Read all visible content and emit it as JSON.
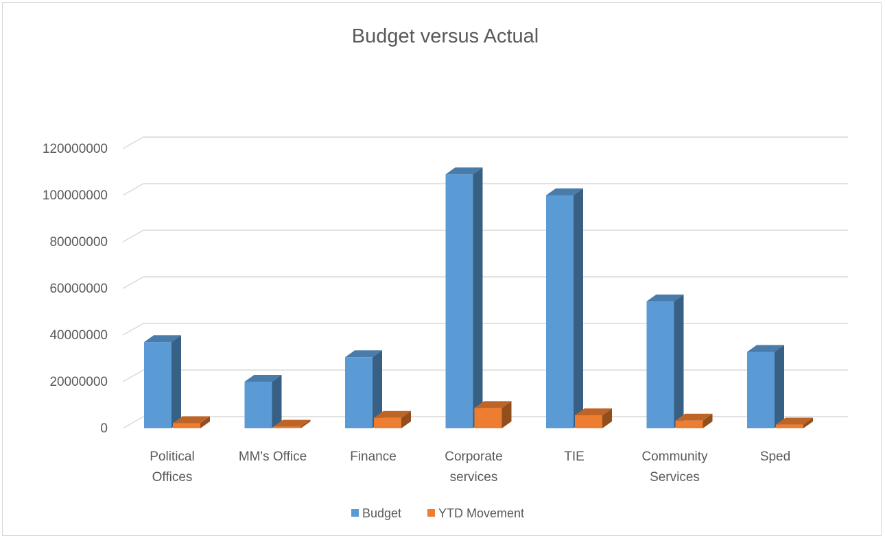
{
  "chart_data": {
    "type": "bar",
    "title": "Budget versus Actual",
    "xlabel": "",
    "ylabel": "",
    "categories": [
      [
        "Political",
        "Offices"
      ],
      [
        "MM's Office"
      ],
      [
        "Finance"
      ],
      [
        "Corporate",
        "services"
      ],
      [
        "TIE"
      ],
      [
        "Community",
        "Services"
      ],
      [
        "Sped"
      ]
    ],
    "series": [
      {
        "name": "Budget",
        "color": "#5b9bd5",
        "values": [
          37000000,
          20000000,
          30500000,
          109000000,
          100000000,
          54500000,
          32800000
        ]
      },
      {
        "name": "YTD Movement",
        "color": "#ed7d31",
        "values": [
          2200000,
          700000,
          4500000,
          8700000,
          5600000,
          3300000,
          1600000
        ]
      }
    ],
    "ylim": [
      0,
      120000000
    ],
    "yticks": [
      0,
      20000000,
      40000000,
      60000000,
      80000000,
      100000000,
      120000000
    ],
    "ytick_labels": [
      "0",
      "20000000",
      "40000000",
      "60000000",
      "80000000",
      "100000000",
      "120000000"
    ],
    "grid": true,
    "legend_position": "bottom",
    "style": "3d-clustered-column"
  }
}
